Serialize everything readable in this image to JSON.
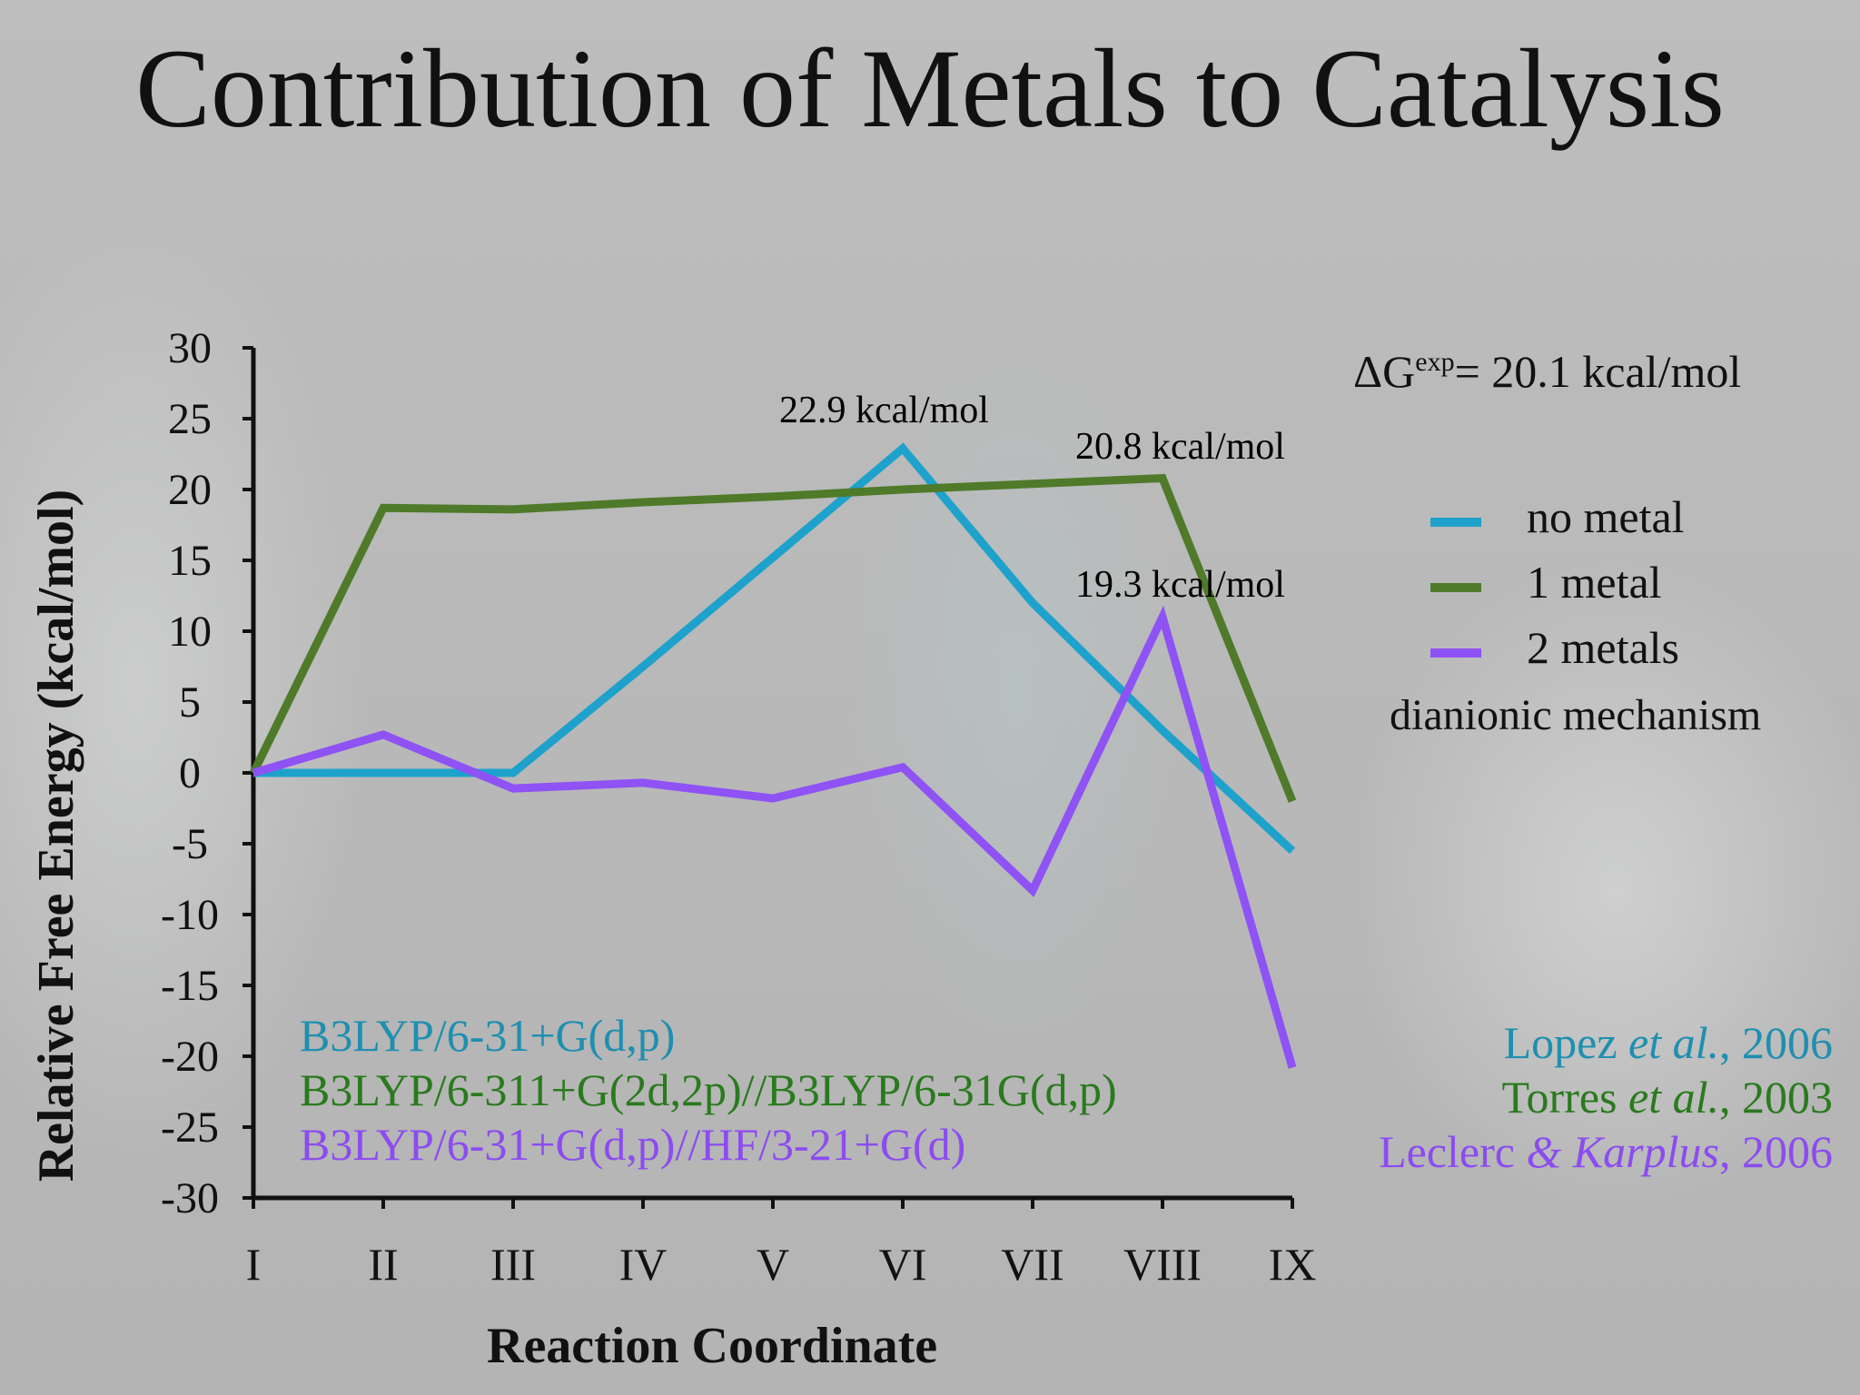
{
  "slide": {
    "title": "Contribution of Metals to Catalysis",
    "delta_g_text": "= 20.1 kcal/mol",
    "delta_g_prefix": "ΔG",
    "delta_g_sup": "exp",
    "mechanism_text": "dianionic mechanism",
    "methods": [
      {
        "text": "B3LYP/6-31+G(d,p)",
        "color": "#1f8fb0"
      },
      {
        "text": "B3LYP/6-311+G(2d,2p)//B3LYP/6-31G(d,p)",
        "color": "#2a7a1e"
      },
      {
        "text": "B3LYP/6-31+G(d,p)//HF/3-21+G(d)",
        "color": "#8c4cf0"
      }
    ],
    "references": [
      {
        "author": "Lopez ",
        "etal": "et al.",
        "year": ", 2006",
        "color": "#1f8fb0"
      },
      {
        "author": "Torres ",
        "etal": "et al.",
        "year": ", 2003",
        "color": "#2a7a1e"
      },
      {
        "author": "Leclerc ",
        "etal": "& Karplus",
        "year": ", 2006",
        "color": "#8c4cf0"
      }
    ]
  },
  "chart_data": {
    "type": "line",
    "xlabel": "Reaction Coordinate",
    "ylabel": "Relative Free Energy (kcal/mol)",
    "categories": [
      "I",
      "II",
      "III",
      "IV",
      "V",
      "VI",
      "VII",
      "VIII",
      "IX"
    ],
    "ylim": [
      -30,
      30
    ],
    "yticks": [
      30,
      25,
      20,
      15,
      10,
      5,
      0,
      -5,
      -10,
      -15,
      -20,
      -25,
      -30
    ],
    "grid": false,
    "legend_position": "right",
    "series": [
      {
        "name": "no metal",
        "color": "#1ea2cc",
        "values": [
          0,
          0,
          0,
          7.5,
          15.2,
          22.9,
          12,
          3,
          -5.5
        ]
      },
      {
        "name": "1 metal",
        "color": "#4f7a2a",
        "values": [
          0,
          18.7,
          18.6,
          19.1,
          19.5,
          20,
          20.4,
          20.8,
          -2
        ]
      },
      {
        "name": "2 metals",
        "color": "#8f52f5",
        "values": [
          0,
          2.7,
          -1.1,
          -0.7,
          -1.8,
          0.4,
          -8.3,
          11,
          -20.8
        ]
      }
    ],
    "annotations": [
      {
        "text": "22.9 kcal/mol",
        "color": "#1f8fb0"
      },
      {
        "text": "20.8 kcal/mol",
        "color": "#2a7a1e"
      },
      {
        "text": "19.3 kcal/mol",
        "color": "#8c4cf0"
      }
    ]
  }
}
